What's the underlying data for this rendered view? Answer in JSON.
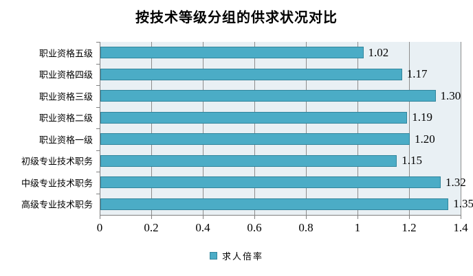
{
  "title": "按技术等级分组的供求状况对比",
  "legend": {
    "label": "求人倍率"
  },
  "colors": {
    "bar_fill": "#4BACC6",
    "bar_border": "#31859C",
    "plot_bg": "#E9F0F4",
    "gridline": "#8C8C8C",
    "axis": "#7F7F7F",
    "text": "#000000",
    "background": "#FFFFFF"
  },
  "chart_data": {
    "type": "bar",
    "orientation": "horizontal",
    "title": "按技术等级分组的供求状况对比",
    "categories": [
      "职业资格五级",
      "职业资格四级",
      "职业资格三级",
      "职业资格二级",
      "职业资格一级",
      "初级专业技术职务",
      "中级专业技术职务",
      "高级专业技术职务"
    ],
    "series": [
      {
        "name": "求人倍率",
        "values": [
          1.02,
          1.17,
          1.3,
          1.19,
          1.2,
          1.15,
          1.32,
          1.35
        ]
      }
    ],
    "value_labels": [
      "1.02",
      "1.17",
      "1.30",
      "1.19",
      "1.20",
      "1.15",
      "1.32",
      "1.35"
    ],
    "xlabel": "",
    "ylabel": "",
    "xlim": [
      0,
      1.4
    ],
    "x_tick_step": 0.2,
    "x_ticks": [
      "0",
      "0.2",
      "0.4",
      "0.6",
      "0.8",
      "1",
      "1.2",
      "1.4"
    ],
    "grid": true,
    "legend_position": "bottom"
  }
}
